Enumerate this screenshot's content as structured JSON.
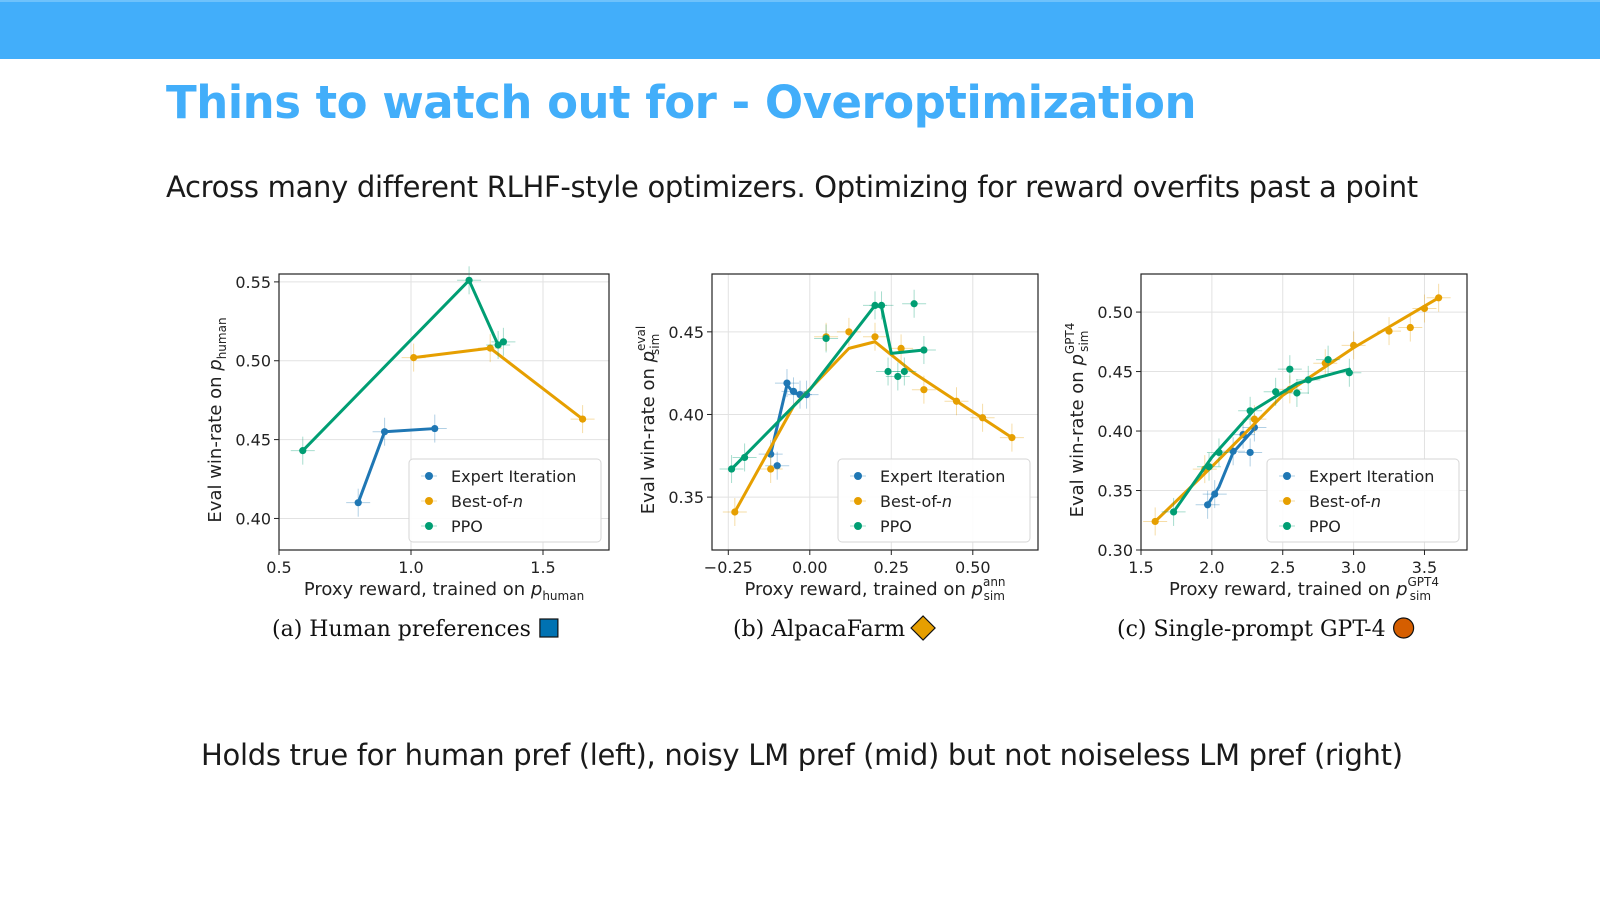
{
  "slide": {
    "title": "Thins to watch out for - Overoptimization",
    "subtitle": "Across many different RLHF-style optimizers. Optimizing for reward overfits past a point",
    "footnote": "Holds true for human pref (left), noisy LM pref (mid) but not noiseless LM pref (right)"
  },
  "colors": {
    "header_bar": "#42aefa",
    "title": "#42aefa",
    "expert_iteration": "#1f77b4",
    "best_of_n": "#e69f00",
    "ppo": "#009e73",
    "marker_a": "#0072b2",
    "marker_b": "#e69f00",
    "marker_c": "#d55e00"
  },
  "chart_data": [
    {
      "type": "line",
      "caption": "(a) Human preferences",
      "caption_marker": "square",
      "xlabel": "Proxy reward, trained on p_human",
      "ylabel": "Eval win-rate on p_human",
      "xlim": [
        0.5,
        1.75
      ],
      "ylim": [
        0.38,
        0.555
      ],
      "xticks": [
        0.5,
        1.0,
        1.5
      ],
      "yticks": [
        0.4,
        0.45,
        0.5,
        0.55
      ],
      "xtick_labels": [
        "0.5",
        "1.0",
        "1.5"
      ],
      "ytick_labels": [
        "0.40",
        "0.45",
        "0.50",
        "0.55"
      ],
      "grid": true,
      "legend": "lower-right",
      "series": [
        {
          "name": "Expert Iteration",
          "color_key": "expert_iteration",
          "line_x": [
            0.8,
            0.9,
            1.09
          ],
          "line_y": [
            0.41,
            0.455,
            0.457
          ],
          "points_x": [
            0.8,
            0.9,
            1.09
          ],
          "points_y": [
            0.41,
            0.455,
            0.457
          ]
        },
        {
          "name": "Best-of-n",
          "color_key": "best_of_n",
          "line_x": [
            1.01,
            1.3,
            1.65
          ],
          "line_y": [
            0.502,
            0.508,
            0.463
          ],
          "points_x": [
            1.01,
            1.3,
            1.65
          ],
          "points_y": [
            0.502,
            0.508,
            0.463
          ]
        },
        {
          "name": "PPO",
          "color_key": "ppo",
          "line_x": [
            0.59,
            1.22,
            1.33,
            1.35
          ],
          "line_y": [
            0.443,
            0.551,
            0.51,
            0.512
          ],
          "points_x": [
            0.59,
            1.22,
            1.33,
            1.35
          ],
          "points_y": [
            0.443,
            0.551,
            0.51,
            0.512
          ]
        }
      ]
    },
    {
      "type": "line",
      "caption": "(b) AlpacaFarm",
      "caption_marker": "diamond",
      "xlabel": "Proxy reward, trained on p_sim^ann",
      "ylabel": "Eval win-rate on p_sim^eval",
      "xlim": [
        -0.3,
        0.7
      ],
      "ylim": [
        0.318,
        0.485
      ],
      "xticks": [
        -0.25,
        0.0,
        0.25,
        0.5
      ],
      "yticks": [
        0.35,
        0.4,
        0.45
      ],
      "xtick_labels": [
        "−0.25",
        "0.00",
        "0.25",
        "0.50"
      ],
      "ytick_labels": [
        "0.35",
        "0.40",
        "0.45"
      ],
      "grid": true,
      "legend": "lower-right",
      "series": [
        {
          "name": "Expert Iteration",
          "color_key": "expert_iteration",
          "line_x": [
            -0.12,
            -0.07,
            -0.05,
            -0.01
          ],
          "line_y": [
            0.376,
            0.418,
            0.413,
            0.412
          ],
          "points_x": [
            -0.12,
            -0.1,
            -0.07,
            -0.05,
            -0.03,
            -0.01
          ],
          "points_y": [
            0.376,
            0.369,
            0.419,
            0.414,
            0.412,
            0.412
          ]
        },
        {
          "name": "Best-of-n",
          "color_key": "best_of_n",
          "line_x": [
            -0.23,
            -0.05,
            0.12,
            0.2,
            0.32,
            0.62
          ],
          "line_y": [
            0.341,
            0.405,
            0.44,
            0.444,
            0.425,
            0.386
          ],
          "points_x": [
            -0.23,
            -0.12,
            0.05,
            0.12,
            0.2,
            0.28,
            0.35,
            0.45,
            0.53,
            0.62
          ],
          "points_y": [
            0.341,
            0.367,
            0.447,
            0.45,
            0.447,
            0.44,
            0.415,
            0.408,
            0.398,
            0.386
          ]
        },
        {
          "name": "PPO",
          "color_key": "ppo",
          "line_x": [
            -0.24,
            0.0,
            0.2,
            0.22,
            0.25,
            0.35
          ],
          "line_y": [
            0.367,
            0.415,
            0.466,
            0.465,
            0.437,
            0.439
          ],
          "points_x": [
            -0.24,
            -0.2,
            0.05,
            0.2,
            0.22,
            0.24,
            0.27,
            0.29,
            0.32,
            0.35
          ],
          "points_y": [
            0.367,
            0.374,
            0.446,
            0.466,
            0.466,
            0.426,
            0.423,
            0.426,
            0.467,
            0.439
          ]
        }
      ]
    },
    {
      "type": "line",
      "caption": "(c) Single-prompt GPT-4",
      "caption_marker": "circle",
      "xlabel": "Proxy reward, trained on p_sim^GPT4",
      "ylabel": "Eval win-rate on p_sim^GPT4",
      "xlim": [
        1.5,
        3.8
      ],
      "ylim": [
        0.3,
        0.532
      ],
      "xticks": [
        1.5,
        2.0,
        2.5,
        3.0,
        3.5
      ],
      "yticks": [
        0.3,
        0.35,
        0.4,
        0.45,
        0.5
      ],
      "xtick_labels": [
        "1.5",
        "2.0",
        "2.5",
        "3.0",
        "3.5"
      ],
      "ytick_labels": [
        "0.30",
        "0.35",
        "0.40",
        "0.45",
        "0.50"
      ],
      "grid": true,
      "legend": "lower-right",
      "series": [
        {
          "name": "Expert Iteration",
          "color_key": "expert_iteration",
          "line_x": [
            1.97,
            2.05,
            2.15,
            2.3
          ],
          "line_y": [
            0.338,
            0.353,
            0.382,
            0.402
          ],
          "points_x": [
            1.97,
            2.02,
            2.15,
            2.22,
            2.27,
            2.3
          ],
          "points_y": [
            0.338,
            0.347,
            0.383,
            0.397,
            0.382,
            0.403
          ]
        },
        {
          "name": "Best-of-n",
          "color_key": "best_of_n",
          "line_x": [
            1.6,
            2.0,
            2.5,
            3.0,
            3.6
          ],
          "line_y": [
            0.324,
            0.37,
            0.43,
            0.47,
            0.512
          ],
          "points_x": [
            1.6,
            1.95,
            2.3,
            2.55,
            2.8,
            3.0,
            3.25,
            3.4,
            3.5,
            3.6
          ],
          "points_y": [
            0.324,
            0.368,
            0.41,
            0.435,
            0.457,
            0.472,
            0.484,
            0.487,
            0.503,
            0.512
          ]
        },
        {
          "name": "PPO",
          "color_key": "ppo",
          "line_x": [
            1.73,
            2.0,
            2.3,
            2.6,
            2.97
          ],
          "line_y": [
            0.332,
            0.378,
            0.418,
            0.44,
            0.452
          ],
          "points_x": [
            1.73,
            1.98,
            2.05,
            2.27,
            2.45,
            2.55,
            2.6,
            2.68,
            2.82,
            2.97
          ],
          "points_y": [
            0.332,
            0.37,
            0.382,
            0.417,
            0.433,
            0.452,
            0.432,
            0.443,
            0.46,
            0.449
          ]
        }
      ]
    }
  ]
}
